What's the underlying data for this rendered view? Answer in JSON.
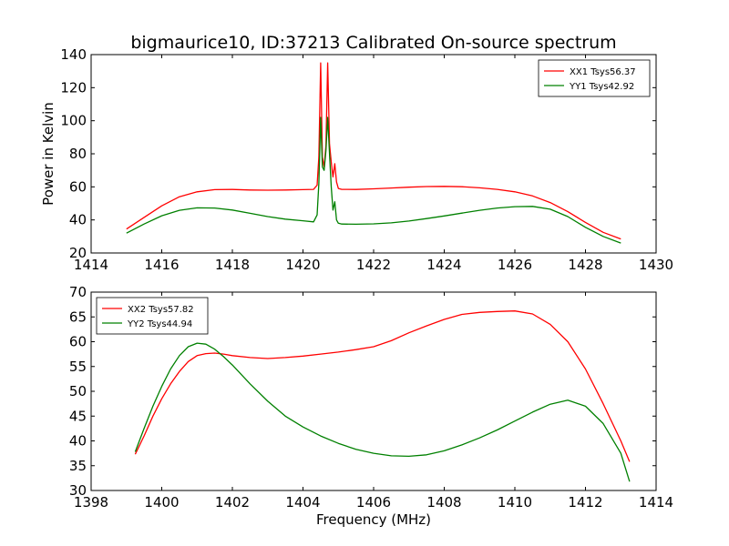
{
  "figure_title": "bigmaurice10, ID:37213 Calibrated On-source spectrum",
  "chart_data": [
    {
      "type": "line",
      "title": "bigmaurice10, ID:37213 Calibrated On-source spectrum",
      "xlabel": "",
      "ylabel": "Power in Kelvin",
      "xlim": [
        1414,
        1430
      ],
      "ylim": [
        20,
        140
      ],
      "xticks": [
        1414,
        1416,
        1418,
        1420,
        1422,
        1424,
        1426,
        1428,
        1430
      ],
      "yticks": [
        20,
        40,
        60,
        80,
        100,
        120,
        140
      ],
      "grid": false,
      "legend_position": "top-right",
      "series": [
        {
          "name": "XX1 Tsys56.37",
          "color": "#ff0000",
          "x": [
            1415.0,
            1415.5,
            1416.0,
            1416.5,
            1417.0,
            1417.5,
            1418.0,
            1418.5,
            1419.0,
            1419.5,
            1420.0,
            1420.3,
            1420.4,
            1420.45,
            1420.5,
            1420.55,
            1420.6,
            1420.65,
            1420.7,
            1420.75,
            1420.8,
            1420.85,
            1420.9,
            1420.95,
            1421.0,
            1421.1,
            1421.5,
            1422.0,
            1422.5,
            1423.0,
            1423.5,
            1424.0,
            1424.5,
            1425.0,
            1425.5,
            1426.0,
            1426.5,
            1427.0,
            1427.5,
            1428.0,
            1428.5,
            1429.0
          ],
          "y": [
            34.5,
            41.5,
            48.5,
            54.0,
            57.0,
            58.3,
            58.4,
            58.1,
            58.0,
            58.1,
            58.3,
            58.5,
            61,
            78,
            135,
            78,
            72,
            85,
            135,
            86,
            75,
            66,
            74,
            63,
            59,
            58.5,
            58.4,
            58.8,
            59.3,
            59.8,
            60.2,
            60.3,
            60.1,
            59.4,
            58.5,
            57.0,
            54.5,
            50.5,
            45.0,
            38.5,
            32.5,
            28.5
          ]
        },
        {
          "name": "YY1 Tsys42.92",
          "color": "#008000",
          "x": [
            1415.0,
            1415.5,
            1416.0,
            1416.5,
            1417.0,
            1417.5,
            1418.0,
            1418.5,
            1419.0,
            1419.5,
            1420.0,
            1420.3,
            1420.4,
            1420.45,
            1420.5,
            1420.55,
            1420.6,
            1420.65,
            1420.7,
            1420.75,
            1420.8,
            1420.85,
            1420.9,
            1420.95,
            1421.0,
            1421.1,
            1421.5,
            1422.0,
            1422.5,
            1423.0,
            1423.5,
            1424.0,
            1424.5,
            1425.0,
            1425.5,
            1426.0,
            1426.5,
            1427.0,
            1427.5,
            1428.0,
            1428.5,
            1429.0
          ],
          "y": [
            32.0,
            37.5,
            42.5,
            45.8,
            47.3,
            47.2,
            46.0,
            44.0,
            42.0,
            40.5,
            39.5,
            38.8,
            43,
            62,
            102,
            72,
            70,
            82,
            102,
            80,
            60,
            46,
            51,
            40,
            38,
            37.5,
            37.4,
            37.6,
            38.2,
            39.3,
            40.8,
            42.4,
            44.1,
            45.8,
            47.2,
            48.0,
            48.2,
            46.5,
            42.0,
            35.5,
            30.0,
            26.0
          ]
        }
      ]
    },
    {
      "type": "line",
      "title": "",
      "xlabel": "Frequency (MHz)",
      "ylabel": "",
      "xlim": [
        1398,
        1414
      ],
      "ylim": [
        30,
        70
      ],
      "xticks": [
        1398,
        1400,
        1402,
        1404,
        1406,
        1408,
        1410,
        1412,
        1414
      ],
      "yticks": [
        30,
        35,
        40,
        45,
        50,
        55,
        60,
        65,
        70
      ],
      "grid": false,
      "legend_position": "top-left",
      "series": [
        {
          "name": "XX2 Tsys57.82",
          "color": "#ff0000",
          "x": [
            1399.25,
            1399.5,
            1399.75,
            1400.0,
            1400.25,
            1400.5,
            1400.75,
            1401.0,
            1401.25,
            1401.5,
            1401.75,
            1402.0,
            1402.5,
            1403.0,
            1403.5,
            1404.0,
            1404.5,
            1405.0,
            1405.5,
            1406.0,
            1406.5,
            1407.0,
            1407.5,
            1408.0,
            1408.5,
            1409.0,
            1409.5,
            1410.0,
            1410.5,
            1411.0,
            1411.5,
            1412.0,
            1412.5,
            1413.0,
            1413.25
          ],
          "y": [
            37.3,
            41.0,
            45.0,
            48.5,
            51.5,
            54.0,
            56.0,
            57.2,
            57.6,
            57.7,
            57.5,
            57.2,
            56.8,
            56.6,
            56.8,
            57.1,
            57.5,
            57.9,
            58.4,
            59.0,
            60.2,
            61.8,
            63.2,
            64.5,
            65.5,
            65.9,
            66.1,
            66.2,
            65.6,
            63.5,
            60.0,
            54.5,
            47.5,
            40.0,
            35.8
          ]
        },
        {
          "name": "YY2 Tsys44.94",
          "color": "#008000",
          "x": [
            1399.25,
            1399.5,
            1399.75,
            1400.0,
            1400.25,
            1400.5,
            1400.75,
            1401.0,
            1401.25,
            1401.5,
            1401.75,
            1402.0,
            1402.5,
            1403.0,
            1403.5,
            1404.0,
            1404.5,
            1405.0,
            1405.5,
            1406.0,
            1406.5,
            1407.0,
            1407.5,
            1408.0,
            1408.5,
            1409.0,
            1409.5,
            1410.0,
            1410.5,
            1411.0,
            1411.5,
            1412.0,
            1412.5,
            1413.0,
            1413.25
          ],
          "y": [
            37.8,
            42.5,
            47.0,
            51.0,
            54.5,
            57.2,
            59.0,
            59.7,
            59.5,
            58.5,
            57.0,
            55.3,
            51.5,
            48.0,
            45.0,
            42.8,
            41.0,
            39.5,
            38.3,
            37.5,
            37.0,
            36.9,
            37.2,
            38.0,
            39.2,
            40.6,
            42.2,
            44.0,
            45.8,
            47.4,
            48.2,
            47.0,
            43.5,
            37.5,
            31.8
          ]
        }
      ]
    }
  ]
}
